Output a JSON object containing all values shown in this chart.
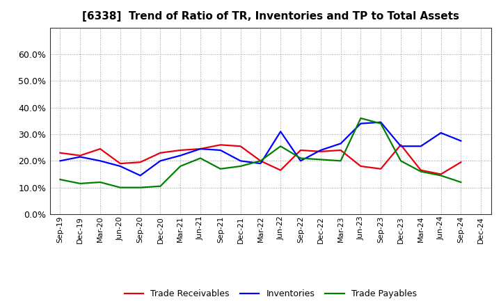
{
  "title": "[6338]  Trend of Ratio of TR, Inventories and TP to Total Assets",
  "x_labels": [
    "Sep-19",
    "Dec-19",
    "Mar-20",
    "Jun-20",
    "Sep-20",
    "Dec-20",
    "Mar-21",
    "Jun-21",
    "Sep-21",
    "Dec-21",
    "Mar-22",
    "Jun-22",
    "Sep-22",
    "Dec-22",
    "Mar-23",
    "Jun-23",
    "Sep-23",
    "Dec-23",
    "Mar-24",
    "Jun-24",
    "Sep-24",
    "Dec-24"
  ],
  "trade_receivables": [
    23.0,
    22.0,
    24.5,
    19.0,
    19.5,
    23.0,
    24.0,
    24.5,
    26.0,
    25.5,
    20.0,
    16.5,
    24.0,
    23.5,
    24.0,
    18.0,
    17.0,
    26.0,
    16.5,
    15.0,
    19.5,
    null
  ],
  "inventories": [
    20.0,
    21.5,
    20.0,
    18.0,
    14.5,
    20.0,
    22.0,
    24.5,
    24.0,
    20.0,
    19.0,
    31.0,
    20.0,
    24.0,
    26.5,
    34.0,
    34.5,
    25.5,
    25.5,
    30.5,
    27.5,
    null
  ],
  "trade_payables": [
    13.0,
    11.5,
    12.0,
    10.0,
    10.0,
    10.5,
    18.0,
    21.0,
    17.0,
    18.0,
    20.0,
    25.5,
    21.0,
    20.5,
    20.0,
    36.0,
    34.0,
    20.0,
    16.0,
    14.5,
    12.0,
    null
  ],
  "color_tr": "#e8000d",
  "color_inv": "#0000ff",
  "color_tp": "#008000",
  "legend_labels": [
    "Trade Receivables",
    "Inventories",
    "Trade Payables"
  ],
  "bg_color": "#ffffff",
  "grid_color": "#999999",
  "line_width": 1.6
}
